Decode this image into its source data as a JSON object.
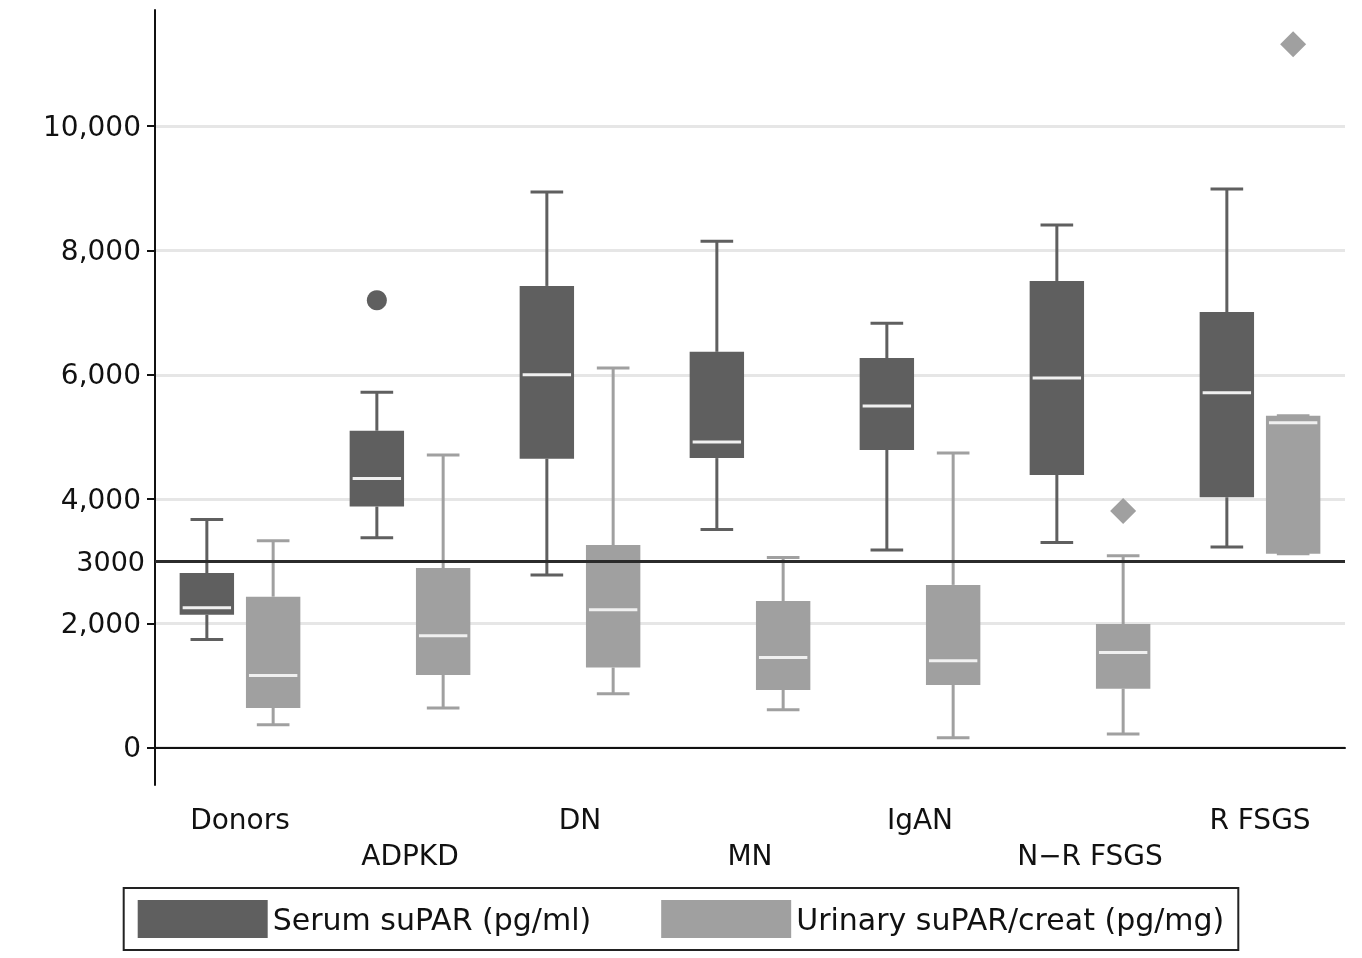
{
  "chart_data": {
    "type": "box",
    "categories": [
      "Donors",
      "ADPKD",
      "DN",
      "MN",
      "IgAN",
      "N−R FSGS",
      "R FSGS"
    ],
    "series": [
      {
        "name": "Serum suPAR (pg/ml)",
        "color": "#5f5f5f",
        "marker": "circle",
        "boxes": [
          {
            "low": 1740,
            "q1": 2140,
            "median": 2250,
            "q3": 2810,
            "high": 3670
          },
          {
            "low": 3380,
            "q1": 3880,
            "median": 4330,
            "q3": 5100,
            "high": 5720,
            "outliers": [
              7200
            ]
          },
          {
            "low": 2780,
            "q1": 4650,
            "median": 6000,
            "q3": 7430,
            "high": 8940
          },
          {
            "low": 3510,
            "q1": 4660,
            "median": 4920,
            "q3": 6370,
            "high": 8150
          },
          {
            "low": 3180,
            "q1": 4790,
            "median": 5500,
            "q3": 6270,
            "high": 6830
          },
          {
            "low": 3300,
            "q1": 4390,
            "median": 5950,
            "q3": 7510,
            "high": 8410
          },
          {
            "low": 3230,
            "q1": 4030,
            "median": 5710,
            "q3": 7010,
            "high": 8990
          }
        ]
      },
      {
        "name": "Urinary suPAR/creat (pg/mg)",
        "color": "#a0a0a0",
        "marker": "diamond",
        "boxes": [
          {
            "low": 370,
            "q1": 640,
            "median": 1160,
            "q3": 2430,
            "high": 3330
          },
          {
            "low": 640,
            "q1": 1170,
            "median": 1800,
            "q3": 2890,
            "high": 4710
          },
          {
            "low": 870,
            "q1": 1290,
            "median": 2220,
            "q3": 3260,
            "high": 6110
          },
          {
            "low": 610,
            "q1": 930,
            "median": 1450,
            "q3": 2360,
            "high": 3060
          },
          {
            "low": 160,
            "q1": 1010,
            "median": 1400,
            "q3": 2620,
            "high": 4740
          },
          {
            "low": 220,
            "q1": 950,
            "median": 1530,
            "q3": 1990,
            "high": 3090,
            "outliers": [
              3810
            ]
          },
          {
            "low": 3120,
            "q1": 3120,
            "median": 5230,
            "q3": 5340,
            "high": 5340,
            "outliers": [
              11320
            ]
          }
        ]
      }
    ],
    "ylim": [
      -600,
      11870
    ],
    "yticks": [
      0,
      {
        "value": 2000,
        "label": "2,000"
      },
      {
        "value": 4000,
        "label": "4,000"
      },
      {
        "value": 6000,
        "label": "6,000"
      },
      {
        "value": 8000,
        "label": "8,000"
      },
      {
        "value": 10000,
        "label": "10,000"
      }
    ],
    "grid": "y",
    "legend": "bottom",
    "ref_lines": [
      {
        "axis": "y",
        "value": 3000,
        "label": "3000",
        "color": "#2b2b2b"
      }
    ]
  }
}
